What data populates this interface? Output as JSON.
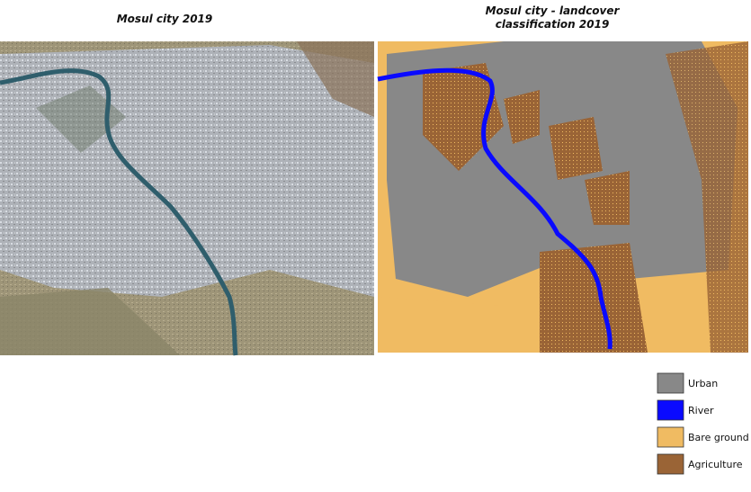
{
  "left_panel": {
    "title": "Mosul city 2019"
  },
  "right_panel": {
    "title_lines": [
      "Mosul city - landcover",
      "classification 2019"
    ]
  },
  "legend": {
    "items": [
      {
        "label": "Urban",
        "color": "#888888"
      },
      {
        "label": "River",
        "color": "#0a0aff"
      },
      {
        "label": "Bare ground",
        "color": "#f0bb62"
      },
      {
        "label": "Agriculture",
        "color": "#9a6436"
      }
    ]
  }
}
